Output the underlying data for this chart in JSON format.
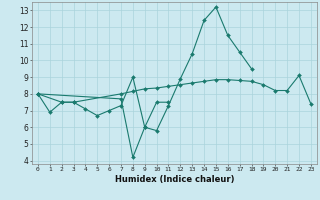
{
  "xlabel": "Humidex (Indice chaleur)",
  "ylabel": "",
  "background_color": "#cce9f0",
  "grid_color": "#aad4dc",
  "line_color": "#1a7a6e",
  "x_values": [
    0,
    1,
    2,
    3,
    4,
    5,
    6,
    7,
    8,
    9,
    10,
    11,
    12,
    13,
    14,
    15,
    16,
    17,
    18,
    19,
    20,
    21,
    22,
    23
  ],
  "series1": [
    8.0,
    6.9,
    7.5,
    7.5,
    7.1,
    6.7,
    7.0,
    7.3,
    9.0,
    6.0,
    7.5,
    7.5,
    null,
    null,
    null,
    null,
    null,
    null,
    null,
    null,
    null,
    null,
    null,
    null
  ],
  "series2": [
    8.0,
    null,
    null,
    null,
    null,
    null,
    null,
    7.7,
    4.2,
    6.0,
    5.8,
    7.3,
    8.9,
    10.4,
    12.4,
    13.2,
    11.5,
    10.5,
    9.5,
    null,
    null,
    null,
    null,
    null
  ],
  "series3": [
    8.0,
    null,
    7.5,
    7.5,
    null,
    null,
    null,
    8.0,
    8.15,
    8.3,
    8.35,
    8.45,
    8.55,
    8.65,
    8.75,
    8.85,
    8.85,
    8.8,
    8.75,
    8.55,
    8.2,
    8.2,
    9.1,
    7.4
  ],
  "xlim": [
    -0.5,
    23.5
  ],
  "ylim": [
    3.8,
    13.5
  ],
  "yticks": [
    4,
    5,
    6,
    7,
    8,
    9,
    10,
    11,
    12,
    13
  ],
  "xticks": [
    0,
    1,
    2,
    3,
    4,
    5,
    6,
    7,
    8,
    9,
    10,
    11,
    12,
    13,
    14,
    15,
    16,
    17,
    18,
    19,
    20,
    21,
    22,
    23
  ]
}
